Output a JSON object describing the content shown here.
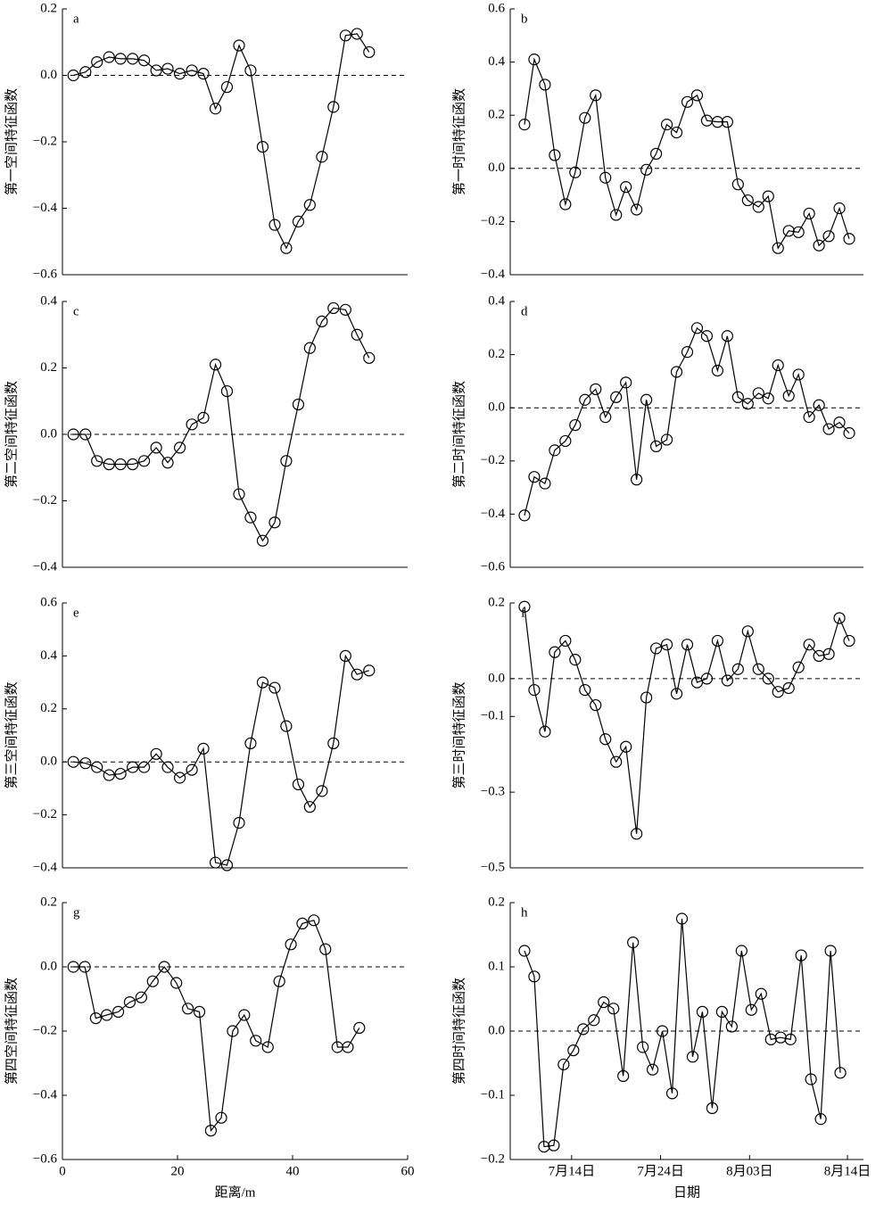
{
  "chart_data": [
    {
      "type": "line",
      "panel_label": "a",
      "ylabel": "第一空间特征函数",
      "color": "#000000",
      "hline": 0,
      "x": [
        1.9,
        4.0,
        6.0,
        8.1,
        10.1,
        12.2,
        14.2,
        16.3,
        18.3,
        20.4,
        22.5,
        24.5,
        26.6,
        28.6,
        30.7,
        32.7,
        34.8,
        36.9,
        38.9,
        41.0,
        43.0,
        45.1,
        47.1,
        49.2,
        51.2,
        53.3
      ],
      "values": [
        0,
        0.01,
        0.04,
        0.055,
        0.05,
        0.05,
        0.045,
        0.015,
        0.02,
        0.005,
        0.015,
        0.005,
        -0.1,
        -0.035,
        0.09,
        0.015,
        -0.215,
        -0.45,
        -0.52,
        -0.44,
        -0.39,
        -0.245,
        -0.095,
        0.12,
        0.125,
        0.07
      ],
      "xlim": [
        0,
        60
      ],
      "ylim": [
        -0.6,
        0.2
      ],
      "yticks": [
        0.2,
        {
          "value": 0,
          "label": "0.0"
        },
        {
          "value": -0.2,
          "label": "−0.2"
        },
        {
          "value": -0.4,
          "label": "−0.4"
        },
        {
          "value": -0.6,
          "label": "−0.6"
        }
      ]
    },
    {
      "type": "line",
      "panel_label": "b",
      "ylabel": "第一时间特征函数",
      "color": "#000000",
      "hline": 0,
      "x": [
        8.7,
        9.8,
        11.0,
        12.1,
        13.3,
        14.4,
        15.5,
        16.7,
        17.8,
        19.0,
        20.1,
        21.3,
        22.4,
        23.5,
        24.7,
        25.8,
        27.0,
        28.1,
        29.2,
        30.4,
        31.5,
        32.7,
        33.8,
        35.0,
        36.1,
        37.2,
        38.4,
        39.5,
        40.7,
        41.8,
        42.9,
        44.1,
        45.2
      ],
      "values": [
        0.165,
        0.41,
        0.315,
        0.05,
        -0.135,
        -0.015,
        0.19,
        0.275,
        -0.035,
        -0.175,
        -0.07,
        -0.155,
        -0.005,
        0.055,
        0.165,
        0.135,
        0.25,
        0.275,
        0.18,
        0.175,
        0.175,
        -0.06,
        -0.12,
        -0.145,
        -0.105,
        -0.3,
        -0.235,
        -0.24,
        -0.17,
        -0.29,
        -0.255,
        -0.15,
        -0.265
      ],
      "xlim": [
        7.1,
        46.8
      ],
      "ylim": [
        -0.4,
        0.6
      ],
      "yticks": [
        0.6,
        0.4,
        0.2,
        {
          "value": 0,
          "label": "0.0"
        },
        {
          "value": -0.2,
          "label": "−0.2"
        },
        {
          "value": -0.4,
          "label": "−0.4"
        }
      ]
    },
    {
      "type": "line",
      "panel_label": "c",
      "ylabel": "第二空间特征函数",
      "color": "#000000",
      "hline": 0,
      "x": [
        1.9,
        4.0,
        6.0,
        8.1,
        10.1,
        12.2,
        14.2,
        16.3,
        18.3,
        20.4,
        22.5,
        24.5,
        26.6,
        28.6,
        30.7,
        32.7,
        34.8,
        36.9,
        38.9,
        41.0,
        43.0,
        45.1,
        47.1,
        49.2,
        51.2,
        53.3
      ],
      "values": [
        0,
        0,
        -0.08,
        -0.09,
        -0.09,
        -0.09,
        -0.08,
        -0.04,
        -0.085,
        -0.04,
        0.03,
        0.05,
        0.21,
        0.13,
        -0.18,
        -0.25,
        -0.32,
        -0.265,
        -0.08,
        0.09,
        0.26,
        0.34,
        0.38,
        0.375,
        0.3,
        0.23
      ],
      "xlim": [
        0,
        60
      ],
      "ylim": [
        -0.4,
        0.4
      ],
      "yticks": [
        0.4,
        0.2,
        {
          "value": 0,
          "label": "0.0"
        },
        {
          "value": -0.2,
          "label": "−0.2"
        },
        {
          "value": -0.4,
          "label": "−0.4"
        }
      ]
    },
    {
      "type": "line",
      "panel_label": "d",
      "ylabel": "第二时间特征函数",
      "color": "#000000",
      "hline": 0,
      "x": [
        8.7,
        9.8,
        11.0,
        12.1,
        13.3,
        14.4,
        15.5,
        16.7,
        17.8,
        19.0,
        20.1,
        21.3,
        22.4,
        23.5,
        24.7,
        25.8,
        27.0,
        28.1,
        29.2,
        30.4,
        31.5,
        32.7,
        33.8,
        35.0,
        36.1,
        37.2,
        38.4,
        39.5,
        40.7,
        41.8,
        42.9,
        44.1,
        45.2
      ],
      "values": [
        -0.405,
        -0.26,
        -0.285,
        -0.16,
        -0.125,
        -0.065,
        0.03,
        0.07,
        -0.035,
        0.04,
        0.095,
        -0.27,
        0.03,
        -0.145,
        -0.12,
        0.135,
        0.21,
        0.3,
        0.27,
        0.14,
        0.27,
        0.04,
        0.015,
        0.055,
        0.035,
        0.16,
        0.045,
        0.125,
        -0.035,
        0.01,
        -0.08,
        -0.055,
        -0.095
      ],
      "xlim": [
        7.1,
        46.8
      ],
      "ylim": [
        -0.6,
        0.4
      ],
      "yticks": [
        0.4,
        0.2,
        {
          "value": 0,
          "label": "0.0"
        },
        {
          "value": -0.2,
          "label": "−0.2"
        },
        {
          "value": -0.4,
          "label": "−0.4"
        },
        {
          "value": -0.6,
          "label": "−0.6"
        }
      ]
    },
    {
      "type": "line",
      "panel_label": "e",
      "ylabel": "第三空间特征函数",
      "color": "#000000",
      "hline": 0,
      "x": [
        1.9,
        4.0,
        6.0,
        8.1,
        10.1,
        12.2,
        14.2,
        16.3,
        18.3,
        20.4,
        22.5,
        24.5,
        26.6,
        28.6,
        30.7,
        32.7,
        34.8,
        36.9,
        38.9,
        41.0,
        43.0,
        45.1,
        47.1,
        49.2,
        51.2,
        53.3
      ],
      "values": [
        0,
        -0.005,
        -0.02,
        -0.05,
        -0.045,
        -0.02,
        -0.02,
        0.03,
        -0.02,
        -0.06,
        -0.03,
        0.05,
        -0.38,
        -0.39,
        -0.23,
        0.07,
        0.3,
        0.28,
        0.135,
        -0.085,
        -0.17,
        -0.11,
        0.07,
        0.4,
        0.33,
        0.345
      ],
      "xlim": [
        0,
        60
      ],
      "ylim": [
        -0.4,
        0.6
      ],
      "yticks": [
        0.6,
        0.4,
        0.2,
        {
          "value": 0,
          "label": "0.0"
        },
        {
          "value": -0.2,
          "label": "−0.2"
        },
        {
          "value": -0.4,
          "label": "−0.4"
        }
      ]
    },
    {
      "type": "line",
      "panel_label": "f",
      "ylabel": "第三时间特征函数",
      "color": "#000000",
      "hline": 0,
      "x": [
        8.7,
        9.8,
        11.0,
        12.1,
        13.3,
        14.4,
        15.5,
        16.7,
        17.8,
        19.0,
        20.1,
        21.3,
        22.4,
        23.5,
        24.7,
        25.8,
        27.0,
        28.1,
        29.2,
        30.4,
        31.5,
        32.7,
        33.8,
        35.0,
        36.1,
        37.2,
        38.4,
        39.5,
        40.7,
        41.8,
        42.9,
        44.1,
        45.2
      ],
      "values": [
        0.19,
        -0.03,
        -0.14,
        0.07,
        0.1,
        0.05,
        -0.03,
        -0.07,
        -0.16,
        -0.22,
        -0.18,
        -0.41,
        -0.05,
        0.08,
        0.09,
        -0.04,
        0.09,
        -0.01,
        0,
        0.1,
        -0.005,
        0.025,
        0.125,
        0.025,
        0,
        -0.035,
        -0.025,
        0.03,
        0.09,
        0.06,
        0.065,
        0.16,
        0.1
      ],
      "xlim": [
        7.1,
        46.8
      ],
      "ylim": [
        -0.5,
        0.2
      ],
      "yticks": [
        0.2,
        {
          "value": 0,
          "label": "0.0"
        },
        {
          "value": -0.1,
          "label": "−0.1"
        },
        {
          "value": -0.3,
          "label": "−0.3"
        },
        {
          "value": -0.5,
          "label": "−0.5"
        }
      ]
    },
    {
      "type": "line",
      "panel_label": "g",
      "ylabel": "第四空间特征函数",
      "xlabel": "距离/m",
      "color": "#000000",
      "hline": 0,
      "x": [
        1.9,
        3.9,
        5.8,
        7.7,
        9.7,
        11.7,
        13.7,
        15.7,
        17.7,
        19.8,
        21.8,
        23.8,
        25.8,
        27.6,
        29.6,
        31.6,
        33.6,
        35.7,
        37.7,
        39.7,
        41.7,
        43.7,
        45.7,
        47.8,
        49.6,
        51.6
      ],
      "values": [
        0,
        0,
        -0.16,
        -0.15,
        -0.14,
        -0.11,
        -0.095,
        -0.045,
        0,
        -0.05,
        -0.13,
        -0.14,
        -0.51,
        -0.47,
        -0.2,
        -0.15,
        -0.23,
        -0.25,
        -0.045,
        0.07,
        0.135,
        0.145,
        0.055,
        -0.25,
        -0.25,
        -0.19
      ],
      "xlim": [
        0,
        60
      ],
      "ylim": [
        -0.6,
        0.2
      ],
      "xticks": [
        0,
        20,
        40,
        60
      ],
      "yticks": [
        0.2,
        {
          "value": 0,
          "label": "0.0"
        },
        {
          "value": -0.2,
          "label": "−0.2"
        },
        {
          "value": -0.4,
          "label": "−0.4"
        },
        {
          "value": -0.6,
          "label": "−0.6"
        }
      ]
    },
    {
      "type": "line",
      "panel_label": "h",
      "ylabel": "第四时间特征函数",
      "xlabel": "日期",
      "color": "#000000",
      "hline": 0,
      "x": [
        8.7,
        9.8,
        10.9,
        12.0,
        13.1,
        14.2,
        15.3,
        16.5,
        17.6,
        18.7,
        19.8,
        20.9,
        22.0,
        23.1,
        24.2,
        25.3,
        26.4,
        27.6,
        28.7,
        29.8,
        30.9,
        32.0,
        33.1,
        34.2,
        35.3,
        36.4,
        37.5,
        38.6,
        39.8,
        40.9,
        42.0,
        43.1,
        44.2
      ],
      "values": [
        0.125,
        0.085,
        -0.18,
        -0.178,
        -0.052,
        -0.03,
        0.003,
        0.017,
        0.045,
        0.035,
        -0.07,
        0.138,
        -0.025,
        -0.06,
        0,
        -0.097,
        0.175,
        -0.04,
        0.03,
        -0.12,
        0.03,
        0.007,
        0.125,
        0.033,
        0.058,
        -0.013,
        -0.01,
        -0.013,
        0.118,
        -0.075,
        -0.137,
        0.125,
        -0.065
      ],
      "xlim": [
        7.1,
        46.8
      ],
      "ylim": [
        -0.2,
        0.2
      ],
      "xticks": [
        {
          "value": 14,
          "label": "7月14日"
        },
        {
          "value": 24,
          "label": "7月24日"
        },
        {
          "value": 34,
          "label": "8月03日"
        },
        {
          "value": 45,
          "label": "8月14日"
        }
      ],
      "yticks": [
        0.2,
        0.1,
        {
          "value": 0,
          "label": "0.0"
        },
        {
          "value": -0.1,
          "label": "−0.1"
        },
        {
          "value": -0.2,
          "label": "−0.2"
        }
      ]
    }
  ]
}
